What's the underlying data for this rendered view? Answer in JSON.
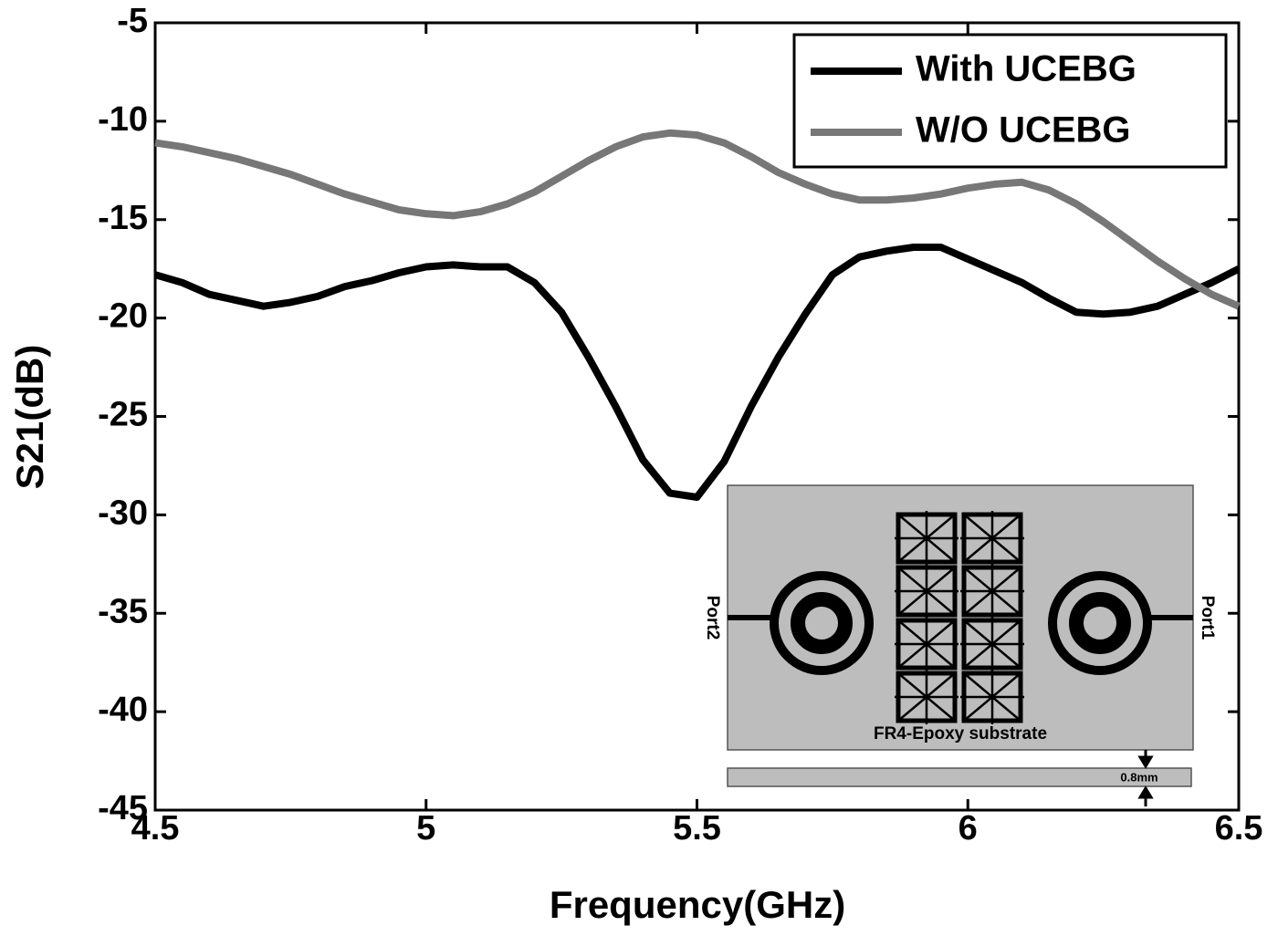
{
  "chart_data": {
    "type": "line",
    "xlabel": "Frequency(GHz)",
    "ylabel": "S21(dB)",
    "x": [
      4.5,
      4.55,
      4.6,
      4.65,
      4.7,
      4.75,
      4.8,
      4.85,
      4.9,
      4.95,
      5.0,
      5.05,
      5.1,
      5.15,
      5.2,
      5.25,
      5.3,
      5.35,
      5.4,
      5.45,
      5.5,
      5.55,
      5.6,
      5.65,
      5.7,
      5.75,
      5.8,
      5.85,
      5.9,
      5.95,
      6.0,
      6.05,
      6.1,
      6.15,
      6.2,
      6.25,
      6.3,
      6.35,
      6.4,
      6.45,
      6.5
    ],
    "series": [
      {
        "name": "With UCEBG",
        "color": "#000000",
        "values": [
          -17.8,
          -18.2,
          -18.8,
          -19.1,
          -19.4,
          -19.2,
          -18.9,
          -18.4,
          -18.1,
          -17.7,
          -17.4,
          -17.3,
          -17.4,
          -17.4,
          -18.2,
          -19.7,
          -22.0,
          -24.5,
          -27.2,
          -28.9,
          -29.1,
          -27.3,
          -24.5,
          -22.0,
          -19.8,
          -17.8,
          -16.9,
          -16.6,
          -16.4,
          -16.4,
          -17.0,
          -17.6,
          -18.2,
          -19.0,
          -19.7,
          -19.8,
          -19.7,
          -19.4,
          -18.8,
          -18.2,
          -17.5
        ]
      },
      {
        "name": "W/O UCEBG",
        "color": "#777777",
        "values": [
          -11.1,
          -11.3,
          -11.6,
          -11.9,
          -12.3,
          -12.7,
          -13.2,
          -13.7,
          -14.1,
          -14.5,
          -14.7,
          -14.8,
          -14.6,
          -14.2,
          -13.6,
          -12.8,
          -12.0,
          -11.3,
          -10.8,
          -10.6,
          -10.7,
          -11.1,
          -11.8,
          -12.6,
          -13.2,
          -13.7,
          -14.0,
          -14.0,
          -13.9,
          -13.7,
          -13.4,
          -13.2,
          -13.1,
          -13.5,
          -14.2,
          -15.1,
          -16.1,
          -17.1,
          -18.0,
          -18.8,
          -19.4
        ]
      }
    ],
    "xlim": [
      4.5,
      6.5
    ],
    "xticks": [
      4.5,
      5,
      5.5,
      6,
      6.5
    ],
    "ylim": [
      -45,
      -5
    ],
    "yticks": [
      -45,
      -40,
      -35,
      -30,
      -25,
      -20,
      -15,
      -10,
      -5
    ],
    "grid": false,
    "legend": "upper right",
    "annotations": [
      "Port2",
      "Port1",
      "FR4-Epoxy substrate",
      "0.8mm"
    ]
  }
}
